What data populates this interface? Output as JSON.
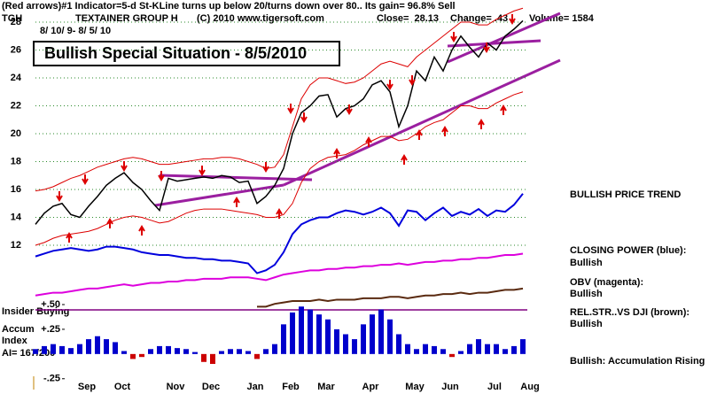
{
  "header": {
    "indicator": "(Red arrows)#1 Indicator=5-d St-KLine turns up below 20/turns down over 80.. Its gain= 96.8% Sell",
    "ticker": "TGH",
    "company": "TEXTAINER GROUP H",
    "copyright": "(C) 2010 www.tigersoft.com",
    "close": "Close=  28.13",
    "change": "Change= .43",
    "volume": "Volume= 1584",
    "dates": "8/ 10/ 9- 8/ 5/ 10",
    "title": "Bullish Special Situation - 8/5/2010"
  },
  "annotations": {
    "price_trend": "BULLISH PRICE TREND",
    "closing_power": "CLOSING POWER (blue):",
    "closing_power_status": "Bullish",
    "obv": "OBV (magenta):",
    "obv_status": "Bullish",
    "rel_str": "REL.STR..VS DJI (brown):",
    "rel_str_status": "Bullish",
    "accumulation": "Bullish: Accumulation Rising",
    "insider": "Insider Buying",
    "accum": "Accum",
    "index": "Index",
    "ai": "AI= 167/200"
  },
  "chart_data": [
    {
      "type": "line",
      "categories": [
        null,
        null,
        null,
        null,
        null,
        null,
        "Sep",
        null,
        null,
        null,
        "Oct",
        null,
        null,
        null,
        null,
        null,
        "Nov",
        null,
        null,
        null,
        "Dec",
        null,
        null,
        null,
        null,
        "Jan",
        null,
        null,
        null,
        "Feb",
        null,
        null,
        null,
        "Mar",
        null,
        null,
        null,
        null,
        "Apr",
        null,
        null,
        null,
        null,
        "May",
        null,
        null,
        null,
        "Jun",
        null,
        null,
        null,
        null,
        "Jul",
        null,
        null,
        null,
        "Aug"
      ],
      "ylim": [
        7.5,
        29
      ],
      "yticks": [
        12,
        14,
        16,
        18,
        20,
        22,
        24,
        26,
        28
      ],
      "grid": true,
      "series": [
        {
          "color": "#dd0000",
          "values": [
            15.9,
            16.0,
            16.2,
            16.5,
            16.8,
            17.0,
            17.3,
            17.6,
            17.8,
            18.0,
            18.2,
            18.3,
            18.2,
            18.0,
            17.8,
            17.8,
            17.9,
            18.0,
            18.1,
            18.2,
            18.2,
            18.3,
            18.3,
            18.2,
            18.0,
            17.8,
            17.5,
            17.6,
            18.5,
            20.5,
            22.5,
            23.5,
            24.0,
            24.0,
            23.8,
            23.6,
            23.7,
            24.0,
            24.5,
            25.0,
            25.2,
            25.0,
            24.8,
            25.5,
            26.0,
            26.5,
            27.0,
            27.5,
            28.0,
            28.0,
            27.8,
            27.8,
            28.2,
            28.5,
            28.8,
            29.0,
            null
          ]
        },
        {
          "color": "#dd0000",
          "values": [
            12.0,
            12.2,
            12.5,
            12.7,
            12.8,
            12.9,
            13.0,
            13.2,
            13.5,
            13.8,
            14.0,
            14.1,
            14.0,
            13.8,
            13.6,
            13.7,
            14.0,
            14.3,
            14.5,
            14.6,
            14.6,
            14.6,
            14.5,
            14.4,
            14.3,
            14.2,
            14.0,
            14.0,
            14.2,
            15.0,
            16.5,
            17.5,
            18.0,
            18.3,
            18.4,
            18.5,
            18.8,
            19.2,
            19.5,
            19.8,
            19.8,
            19.5,
            19.6,
            20.0,
            20.5,
            20.8,
            21.0,
            21.5,
            22.0,
            22.0,
            21.8,
            21.8,
            22.2,
            22.5,
            22.8,
            23.0,
            null
          ]
        },
        {
          "color": "#000000",
          "values": [
            13.5,
            14.3,
            14.8,
            15,
            14.2,
            14,
            14.8,
            15.5,
            16.3,
            16.8,
            17.2,
            16.5,
            16,
            15.2,
            14.5,
            16.8,
            16.6,
            16.7,
            16.8,
            16.9,
            16.8,
            17,
            16.9,
            16.5,
            16.6,
            15,
            15.5,
            16.3,
            17.5,
            20,
            21.5,
            22,
            22.7,
            22.8,
            21.2,
            21.8,
            22,
            22.5,
            23.5,
            23.8,
            23,
            20.5,
            22,
            24.5,
            23.8,
            25.5,
            24.5,
            26,
            27,
            26.2,
            25.5,
            26.5,
            26,
            27,
            27.5,
            28.1,
            null
          ]
        },
        {
          "color": "#0000dd",
          "values": [
            11.2,
            11.4,
            11.6,
            11.7,
            11.8,
            11.7,
            11.6,
            11.7,
            11.9,
            11.9,
            11.8,
            11.7,
            11.5,
            11.4,
            11.3,
            11.3,
            11.2,
            11.1,
            11.1,
            11.0,
            11.0,
            10.9,
            10.9,
            10.8,
            10.7,
            10.0,
            10.2,
            10.6,
            11.5,
            12.8,
            13.5,
            13.8,
            14.0,
            14.0,
            14.3,
            14.5,
            14.4,
            14.2,
            14.4,
            14.7,
            14.3,
            13.4,
            14.5,
            14.4,
            13.8,
            14.3,
            14.7,
            14.1,
            14.4,
            14.2,
            14.6,
            14.1,
            14.5,
            14.4,
            14.9,
            15.7,
            null
          ]
        },
        {
          "color": "#dd00dd",
          "values": [
            8.4,
            8.5,
            8.6,
            8.6,
            8.7,
            8.8,
            8.9,
            8.9,
            9.0,
            9.1,
            9.2,
            9.1,
            9.2,
            9.3,
            9.3,
            9.4,
            9.4,
            9.5,
            9.5,
            9.6,
            9.6,
            9.6,
            9.7,
            9.7,
            9.7,
            9.6,
            9.5,
            9.7,
            9.9,
            10.0,
            10.1,
            10.2,
            10.2,
            10.3,
            10.3,
            10.4,
            10.4,
            10.5,
            10.5,
            10.6,
            10.6,
            10.7,
            10.6,
            10.7,
            10.8,
            10.8,
            10.9,
            10.9,
            11.0,
            11.0,
            11.1,
            11.1,
            11.2,
            11.3,
            11.3,
            11.4,
            null
          ]
        },
        {
          "color": "#5a2a10",
          "values": [
            null,
            null,
            null,
            null,
            null,
            null,
            null,
            null,
            null,
            null,
            null,
            null,
            null,
            null,
            null,
            null,
            null,
            null,
            null,
            null,
            null,
            null,
            null,
            null,
            null,
            7.6,
            7.6,
            7.8,
            7.9,
            8.0,
            8.0,
            8.0,
            8.1,
            8.0,
            8.1,
            8.1,
            8.1,
            8.2,
            8.2,
            8.2,
            8.3,
            8.3,
            8.2,
            8.3,
            8.4,
            8.4,
            8.5,
            8.5,
            8.6,
            8.5,
            8.6,
            8.6,
            8.7,
            8.8,
            8.8,
            8.9,
            null
          ]
        }
      ]
    },
    {
      "type": "bar",
      "color": "#0000cc",
      "negative_color": "#cc0000",
      "ylim": [
        -0.27,
        0.5
      ],
      "yticks": [
        {
          "value": 0.5,
          "label": "+.50"
        },
        {
          "value": 0.25,
          "label": "+.25"
        },
        {
          "value": -0.25,
          "label": "-.25"
        }
      ],
      "values": [
        0.05,
        0.08,
        0.1,
        0.08,
        0.06,
        0.1,
        0.15,
        0.18,
        0.15,
        0.12,
        0.03,
        -0.05,
        -0.03,
        0.05,
        0.08,
        0.08,
        0.06,
        0.05,
        0.02,
        -0.08,
        -0.1,
        0.03,
        0.05,
        0.05,
        0.03,
        -0.05,
        0.05,
        0.1,
        0.3,
        0.42,
        0.48,
        0.45,
        0.4,
        0.35,
        0.25,
        0.2,
        0.15,
        0.3,
        0.4,
        0.45,
        0.35,
        0.2,
        0.1,
        0.05,
        0.1,
        0.08,
        0.05,
        -0.03,
        0.03,
        0.1,
        0.15,
        0.1,
        0.1,
        0.05,
        0.08,
        0.15,
        null
      ]
    }
  ]
}
